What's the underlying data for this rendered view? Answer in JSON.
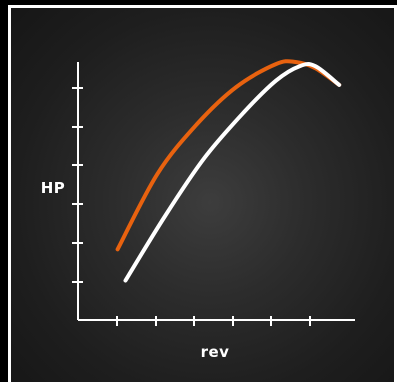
{
  "chart_data": {
    "type": "line",
    "title": "",
    "xlabel": "rev",
    "ylabel": "HP",
    "xticks": 6,
    "yticks": 6,
    "grid": false,
    "legend": false,
    "xlim": [
      0,
      7
    ],
    "ylim": [
      0,
      6.2
    ],
    "series": [
      {
        "color": "#e8620f",
        "x": [
          1.0,
          2.0,
          3.0,
          4.0,
          5.0,
          5.5,
          6.0,
          6.6
        ],
        "y": [
          1.7,
          3.5,
          4.7,
          5.6,
          6.15,
          6.2,
          6.05,
          5.65
        ]
      },
      {
        "color": "#ffffff",
        "x": [
          1.2,
          2.2,
          3.2,
          4.2,
          5.0,
          5.6,
          6.0,
          6.6
        ],
        "y": [
          0.95,
          2.5,
          3.9,
          5.0,
          5.75,
          6.1,
          6.1,
          5.65
        ]
      }
    ]
  }
}
